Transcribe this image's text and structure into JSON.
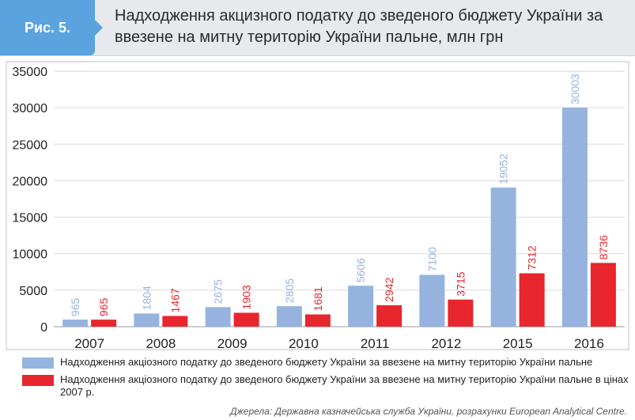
{
  "header": {
    "fig_label": "Рис. 5.",
    "title": "Надходження акцизного податку до зведеного бюджету України за ввезене на митну територію України пальне, млн грн"
  },
  "chart_data": {
    "type": "bar",
    "categories": [
      "2007",
      "2008",
      "2009",
      "2010",
      "2011",
      "2012",
      "2015",
      "2016"
    ],
    "series": [
      {
        "name": "Надходження акціозного податку до зведеного бюджету України за ввезене на митну територію України пальне",
        "color": "#95b3de",
        "label_color": "#95b3de",
        "values": [
          965,
          1804,
          2675,
          2805,
          5606,
          7100,
          19052,
          30003
        ]
      },
      {
        "name": "Надходження акціозного податку до зведеного бюджету України за ввезене на митну територію України пальне в цінах 2007 р.",
        "color": "#e8262d",
        "label_color": "#e8262d",
        "values": [
          965,
          1467,
          1903,
          1681,
          2942,
          3715,
          7312,
          8736
        ]
      }
    ],
    "yticks": [
      "0",
      "5000",
      "10000",
      "15000",
      "20000",
      "25000",
      "30000",
      "35000"
    ],
    "ylim": [
      0,
      35000
    ],
    "grid": true,
    "legend": "bottom"
  },
  "source": "Джерела: Державна казначейська служба України, розрахунки European Analytical Centre."
}
